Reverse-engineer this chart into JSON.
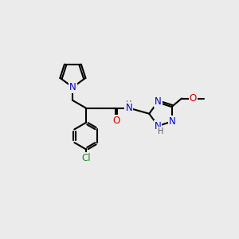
{
  "bg_color": "#ebebeb",
  "atom_colors": {
    "N": "#0000cc",
    "O": "#cc0000",
    "Cl": "#228822",
    "H": "#555555"
  },
  "bond_color": "#000000",
  "bond_width": 1.5,
  "font_size_atom": 8.5,
  "font_size_small": 7.0,
  "xlim": [
    0,
    10
  ],
  "ylim": [
    0,
    10
  ]
}
